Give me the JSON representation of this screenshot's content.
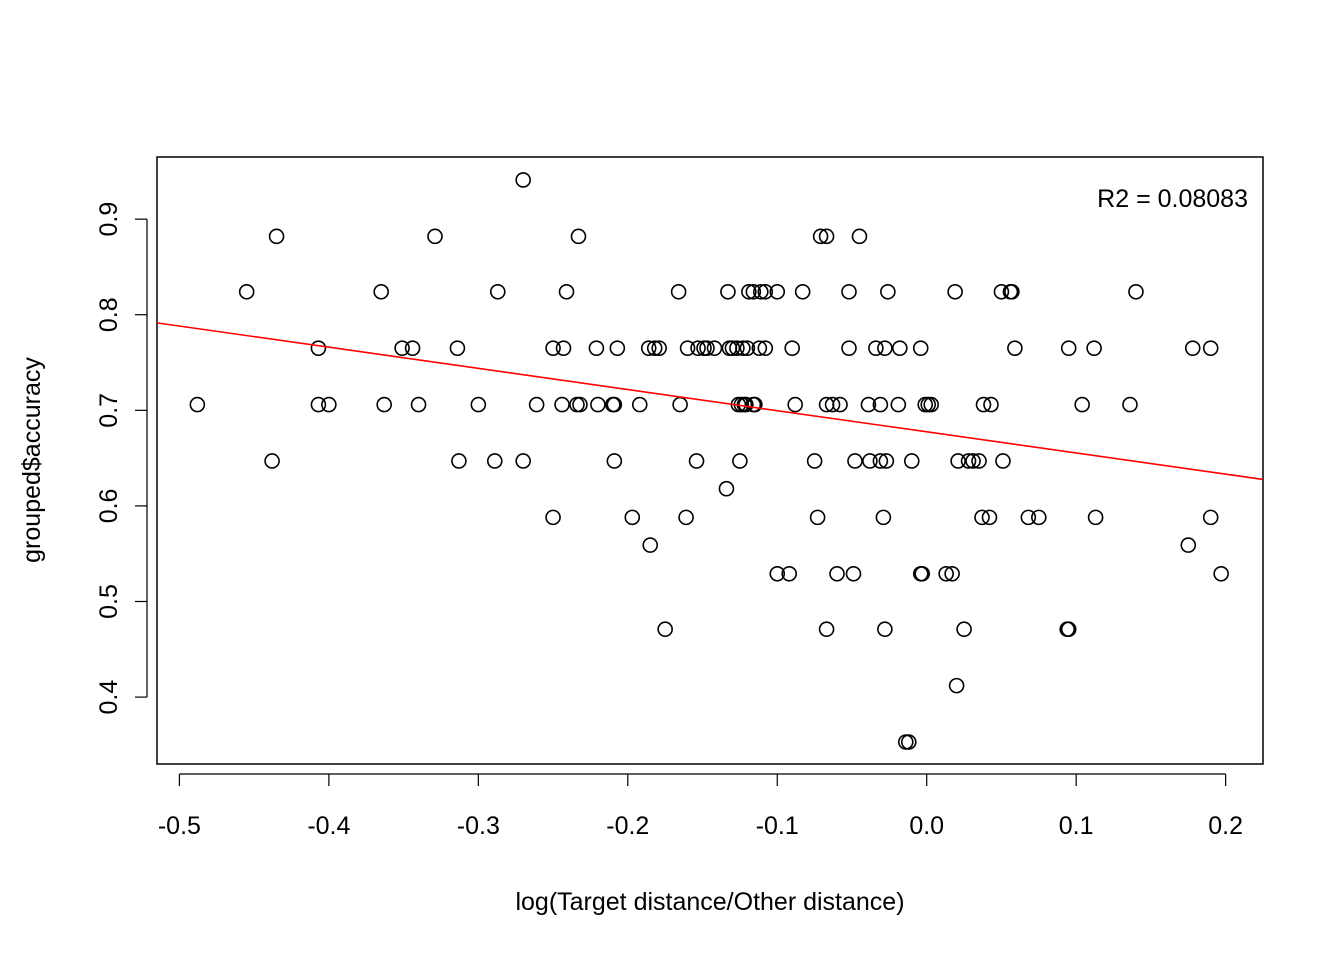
{
  "chart_data": {
    "type": "scatter",
    "xlabel": "log(Target distance/Other distance)",
    "ylabel": "grouped$accuracy",
    "xlim": [
      -0.515,
      0.225
    ],
    "ylim": [
      0.33,
      0.965
    ],
    "x_ticks": [
      -0.5,
      -0.4,
      -0.3,
      -0.2,
      -0.1,
      0.0,
      0.1,
      0.2
    ],
    "x_tick_labels": [
      "-0.5",
      "-0.4",
      "-0.3",
      "-0.2",
      "-0.1",
      "0.0",
      "0.1",
      "0.2"
    ],
    "y_ticks": [
      0.4,
      0.5,
      0.6,
      0.7,
      0.8,
      0.9
    ],
    "y_tick_labels": [
      "0.4",
      "0.5",
      "0.6",
      "0.7",
      "0.8",
      "0.9"
    ],
    "annotation": "R2 = 0.08083",
    "point_color": "#000000",
    "fit_color": "#ff0000",
    "fit_line": {
      "intercept": 0.6775,
      "slope": -0.2213
    },
    "points": [
      [
        -0.488,
        0.706
      ],
      [
        -0.455,
        0.824
      ],
      [
        -0.438,
        0.647
      ],
      [
        -0.435,
        0.882
      ],
      [
        -0.407,
        0.765
      ],
      [
        -0.407,
        0.706
      ],
      [
        -0.4,
        0.706
      ],
      [
        -0.365,
        0.824
      ],
      [
        -0.363,
        0.706
      ],
      [
        -0.351,
        0.765
      ],
      [
        -0.344,
        0.765
      ],
      [
        -0.34,
        0.706
      ],
      [
        -0.329,
        0.882
      ],
      [
        -0.314,
        0.765
      ],
      [
        -0.313,
        0.647
      ],
      [
        -0.3,
        0.706
      ],
      [
        -0.289,
        0.647
      ],
      [
        -0.287,
        0.824
      ],
      [
        -0.27,
        0.941
      ],
      [
        -0.27,
        0.647
      ],
      [
        -0.261,
        0.706
      ],
      [
        -0.25,
        0.765
      ],
      [
        -0.25,
        0.588
      ],
      [
        -0.244,
        0.706
      ],
      [
        -0.243,
        0.765
      ],
      [
        -0.241,
        0.824
      ],
      [
        -0.234,
        0.706
      ],
      [
        -0.233,
        0.882
      ],
      [
        -0.232,
        0.706
      ],
      [
        -0.221,
        0.765
      ],
      [
        -0.22,
        0.706
      ],
      [
        -0.21,
        0.706
      ],
      [
        -0.209,
        0.706
      ],
      [
        -0.209,
        0.647
      ],
      [
        -0.207,
        0.765
      ],
      [
        -0.197,
        0.588
      ],
      [
        -0.192,
        0.706
      ],
      [
        -0.186,
        0.765
      ],
      [
        -0.185,
        0.559
      ],
      [
        -0.182,
        0.765
      ],
      [
        -0.179,
        0.765
      ],
      [
        -0.175,
        0.471
      ],
      [
        -0.166,
        0.824
      ],
      [
        -0.165,
        0.706
      ],
      [
        -0.161,
        0.588
      ],
      [
        -0.16,
        0.765
      ],
      [
        -0.154,
        0.647
      ],
      [
        -0.153,
        0.765
      ],
      [
        -0.149,
        0.765
      ],
      [
        -0.147,
        0.765
      ],
      [
        -0.142,
        0.765
      ],
      [
        -0.134,
        0.618
      ],
      [
        -0.133,
        0.824
      ],
      [
        -0.132,
        0.765
      ],
      [
        -0.13,
        0.765
      ],
      [
        -0.127,
        0.765
      ],
      [
        -0.126,
        0.706
      ],
      [
        -0.125,
        0.647
      ],
      [
        -0.124,
        0.706
      ],
      [
        -0.123,
        0.765
      ],
      [
        -0.122,
        0.706
      ],
      [
        -0.121,
        0.706
      ],
      [
        -0.12,
        0.765
      ],
      [
        -0.119,
        0.824
      ],
      [
        -0.116,
        0.824
      ],
      [
        -0.116,
        0.706
      ],
      [
        -0.115,
        0.706
      ],
      [
        -0.112,
        0.765
      ],
      [
        -0.111,
        0.824
      ],
      [
        -0.108,
        0.824
      ],
      [
        -0.108,
        0.765
      ],
      [
        -0.1,
        0.529
      ],
      [
        -0.1,
        0.824
      ],
      [
        -0.092,
        0.529
      ],
      [
        -0.09,
        0.765
      ],
      [
        -0.088,
        0.706
      ],
      [
        -0.083,
        0.824
      ],
      [
        -0.075,
        0.647
      ],
      [
        -0.073,
        0.588
      ],
      [
        -0.071,
        0.882
      ],
      [
        -0.067,
        0.882
      ],
      [
        -0.067,
        0.706
      ],
      [
        -0.067,
        0.471
      ],
      [
        -0.063,
        0.706
      ],
      [
        -0.06,
        0.529
      ],
      [
        -0.058,
        0.706
      ],
      [
        -0.052,
        0.824
      ],
      [
        -0.052,
        0.765
      ],
      [
        -0.049,
        0.529
      ],
      [
        -0.048,
        0.647
      ],
      [
        -0.045,
        0.882
      ],
      [
        -0.039,
        0.706
      ],
      [
        -0.038,
        0.647
      ],
      [
        -0.034,
        0.765
      ],
      [
        -0.031,
        0.647
      ],
      [
        -0.031,
        0.706
      ],
      [
        -0.029,
        0.588
      ],
      [
        -0.028,
        0.471
      ],
      [
        -0.028,
        0.765
      ],
      [
        -0.027,
        0.647
      ],
      [
        -0.026,
        0.824
      ],
      [
        -0.019,
        0.706
      ],
      [
        -0.018,
        0.765
      ],
      [
        -0.014,
        0.353
      ],
      [
        -0.012,
        0.353
      ],
      [
        -0.01,
        0.647
      ],
      [
        -0.004,
        0.529
      ],
      [
        -0.004,
        0.765
      ],
      [
        -0.003,
        0.529
      ],
      [
        -0.001,
        0.706
      ],
      [
        0.001,
        0.706
      ],
      [
        0.003,
        0.706
      ],
      [
        0.013,
        0.529
      ],
      [
        0.017,
        0.529
      ],
      [
        0.019,
        0.824
      ],
      [
        0.02,
        0.412
      ],
      [
        0.021,
        0.647
      ],
      [
        0.025,
        0.471
      ],
      [
        0.028,
        0.647
      ],
      [
        0.031,
        0.647
      ],
      [
        0.035,
        0.647
      ],
      [
        0.037,
        0.588
      ],
      [
        0.038,
        0.706
      ],
      [
        0.042,
        0.588
      ],
      [
        0.043,
        0.706
      ],
      [
        0.05,
        0.824
      ],
      [
        0.051,
        0.647
      ],
      [
        0.056,
        0.824
      ],
      [
        0.057,
        0.824
      ],
      [
        0.059,
        0.765
      ],
      [
        0.068,
        0.588
      ],
      [
        0.075,
        0.588
      ],
      [
        0.094,
        0.471
      ],
      [
        0.095,
        0.471
      ],
      [
        0.095,
        0.765
      ],
      [
        0.104,
        0.706
      ],
      [
        0.112,
        0.765
      ],
      [
        0.113,
        0.588
      ],
      [
        0.136,
        0.706
      ],
      [
        0.14,
        0.824
      ],
      [
        0.175,
        0.559
      ],
      [
        0.178,
        0.765
      ],
      [
        0.19,
        0.765
      ],
      [
        0.19,
        0.588
      ],
      [
        0.197,
        0.529
      ]
    ]
  }
}
